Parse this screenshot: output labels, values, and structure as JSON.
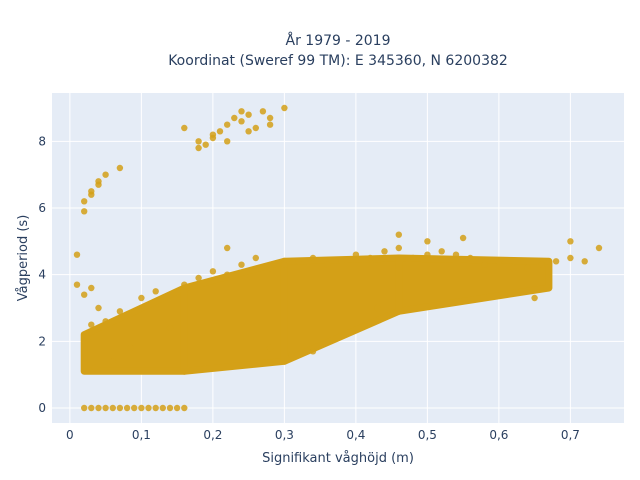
{
  "chart_data": {
    "type": "scatter",
    "title_lines": [
      "År 1979 - 2019",
      "Koordinat (Sweref 99 TM): E 345360, N 6200382"
    ],
    "xlabel": "Signifikant våghöjd (m)",
    "ylabel": "Vågperiod (s)",
    "xlim": [
      -0.025,
      0.775
    ],
    "ylim": [
      -0.45,
      9.45
    ],
    "x_ticks": [
      {
        "value": 0,
        "label": "0"
      },
      {
        "value": 0.1,
        "label": "0,1"
      },
      {
        "value": 0.2,
        "label": "0,2"
      },
      {
        "value": 0.3,
        "label": "0,3"
      },
      {
        "value": 0.4,
        "label": "0,4"
      },
      {
        "value": 0.5,
        "label": "0,5"
      },
      {
        "value": 0.6,
        "label": "0,6"
      },
      {
        "value": 0.7,
        "label": "0,7"
      }
    ],
    "y_ticks": [
      {
        "value": 0,
        "label": "0"
      },
      {
        "value": 2,
        "label": "2"
      },
      {
        "value": 4,
        "label": "4"
      },
      {
        "value": 6,
        "label": "6"
      },
      {
        "value": 8,
        "label": "8"
      }
    ],
    "grid": true,
    "marker_color": "#d4a017",
    "plot_bg": "#e5ecf6",
    "series": [
      {
        "x": [
          0.02,
          0.03,
          0.04,
          0.05,
          0.06,
          0.07,
          0.08,
          0.09,
          0.1,
          0.11,
          0.12,
          0.13,
          0.14,
          0.15,
          0.16,
          0.02,
          0.025,
          0.03,
          0.035,
          0.04,
          0.05,
          0.06,
          0.07,
          0.085,
          0.1,
          0.12,
          0.14,
          0.16,
          0.18,
          0.2,
          0.22,
          0.24,
          0.26,
          0.28,
          0.3,
          0.32,
          0.34,
          0.36,
          0.38,
          0.4,
          0.42,
          0.44,
          0.46,
          0.48,
          0.5,
          0.52,
          0.54,
          0.56,
          0.58,
          0.6,
          0.62,
          0.64,
          0.66,
          0.68,
          0.7,
          0.72,
          0.74,
          0.01,
          0.01,
          0.02,
          0.02,
          0.02,
          0.03,
          0.03,
          0.03,
          0.04,
          0.04,
          0.05,
          0.07,
          0.16,
          0.18,
          0.18,
          0.19,
          0.2,
          0.2,
          0.21,
          0.22,
          0.22,
          0.23,
          0.24,
          0.24,
          0.25,
          0.25,
          0.26,
          0.27,
          0.28,
          0.28,
          0.3,
          0.22,
          0.46,
          0.5,
          0.55,
          0.7,
          0.28,
          0.31,
          0.34,
          0.43,
          0.65
        ],
        "y": [
          0,
          0,
          0,
          0,
          0,
          0,
          0,
          0,
          0,
          0,
          0,
          0,
          0,
          0,
          0,
          1.5,
          2.1,
          2.5,
          1.2,
          3.0,
          2.6,
          1.4,
          2.9,
          1.8,
          3.3,
          3.5,
          2.4,
          3.7,
          3.9,
          4.1,
          4.0,
          4.3,
          4.5,
          4.2,
          4.3,
          4.4,
          4.5,
          4.3,
          4.4,
          4.6,
          4.5,
          4.7,
          4.8,
          4.5,
          4.6,
          4.7,
          4.6,
          4.5,
          4.3,
          4.4,
          4.2,
          4.2,
          4.3,
          4.4,
          4.5,
          4.4,
          4.8,
          4.6,
          3.7,
          5.9,
          6.2,
          3.4,
          6.5,
          6.4,
          3.6,
          6.7,
          6.8,
          7.0,
          7.2,
          8.4,
          8.0,
          7.8,
          7.9,
          8.2,
          8.1,
          8.3,
          8.0,
          8.5,
          8.7,
          8.6,
          8.9,
          8.3,
          8.8,
          8.4,
          8.9,
          8.7,
          8.5,
          9.0,
          4.8,
          5.2,
          5.0,
          5.1,
          5.0,
          1.8,
          1.6,
          1.7,
          3.0,
          3.3
        ]
      }
    ],
    "dense_bands": [
      {
        "x_from": 0.02,
        "x_to": 0.16,
        "y_low_from": 1.1,
        "y_low_to": 1.1,
        "y_high_from": 2.2,
        "y_high_to": 3.6
      },
      {
        "x_from": 0.16,
        "x_to": 0.3,
        "y_low_from": 1.1,
        "y_low_to": 1.4,
        "y_high_from": 3.6,
        "y_high_to": 4.4
      },
      {
        "x_from": 0.3,
        "x_to": 0.46,
        "y_low_from": 1.4,
        "y_low_to": 2.9,
        "y_high_from": 4.4,
        "y_high_to": 4.5
      },
      {
        "x_from": 0.46,
        "x_to": 0.67,
        "y_low_from": 2.9,
        "y_low_to": 3.6,
        "y_high_from": 4.5,
        "y_high_to": 4.4
      }
    ]
  }
}
